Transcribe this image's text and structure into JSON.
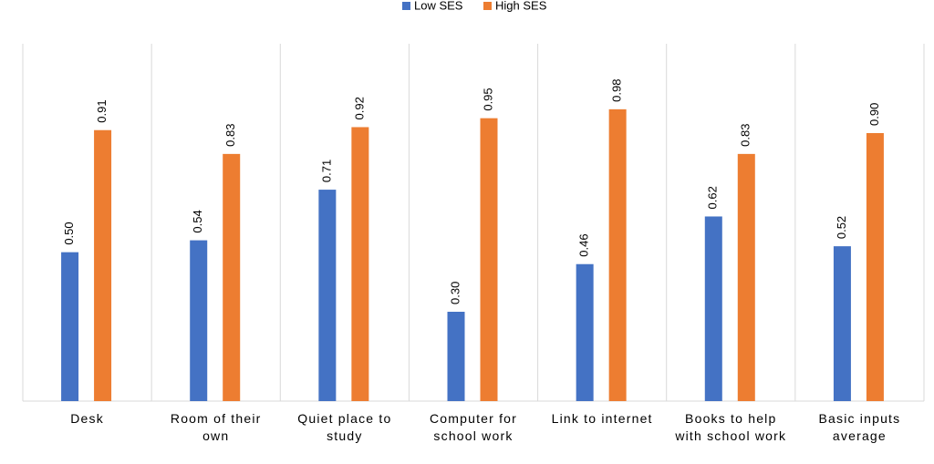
{
  "chart_data": {
    "type": "bar",
    "categories": [
      "Desk",
      "Room of their own",
      "Quiet place to study",
      "Computer for school work",
      "Link to internet",
      "Books to help with school work",
      "Basic inputs average"
    ],
    "series": [
      {
        "name": "Low SES",
        "color": "#4472c4",
        "values": [
          0.5,
          0.54,
          0.71,
          0.3,
          0.46,
          0.62,
          0.52
        ],
        "value_labels": [
          "0.50",
          "0.54",
          "0.71",
          "0.30",
          "0.46",
          "0.62",
          "0.52"
        ]
      },
      {
        "name": "High SES",
        "color": "#ed7d31",
        "values": [
          0.91,
          0.83,
          0.92,
          0.95,
          0.98,
          0.83,
          0.9
        ],
        "value_labels": [
          "0.91",
          "0.83",
          "0.92",
          "0.95",
          "0.98",
          "0.83",
          "0.90"
        ]
      }
    ],
    "ylim": [
      0,
      1.2
    ],
    "legend": "top"
  }
}
